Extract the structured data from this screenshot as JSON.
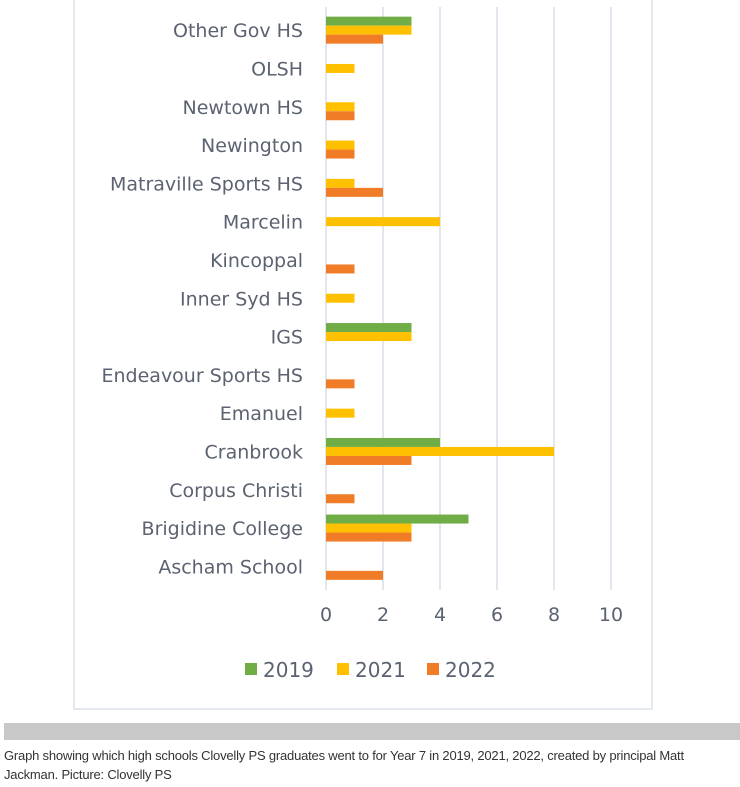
{
  "chart_data": {
    "type": "bar",
    "orientation": "horizontal",
    "title": "",
    "xlabel": "",
    "ylabel": "",
    "categories": [
      "Other Gov HS",
      "OLSH",
      "Newtown HS",
      "Newington",
      "Matraville Sports HS",
      "Marcelin",
      "Kincoppal",
      "Inner Syd HS",
      "IGS",
      "Endeavour Sports HS",
      "Emanuel",
      "Cranbrook",
      "Corpus Christi",
      "Brigidine College",
      "Ascham School"
    ],
    "series": [
      {
        "name": "2019",
        "color": "#70ad47",
        "values": [
          3,
          0,
          0,
          0,
          0,
          0,
          0,
          0,
          3,
          0,
          0,
          4,
          0,
          5,
          0
        ]
      },
      {
        "name": "2021",
        "color": "#ffc000",
        "values": [
          3,
          1,
          1,
          1,
          1,
          4,
          0,
          1,
          3,
          0,
          1,
          8,
          0,
          3,
          0
        ]
      },
      {
        "name": "2022",
        "color": "#f07c28",
        "values": [
          2,
          0,
          1,
          1,
          2,
          0,
          1,
          0,
          0,
          1,
          0,
          3,
          1,
          3,
          2
        ]
      }
    ],
    "xlim": [
      0,
      10
    ],
    "xticks": [
      0,
      2,
      4,
      6,
      8,
      10
    ],
    "tick_labels": [
      "0",
      "2",
      "4",
      "6",
      "8",
      "10"
    ],
    "grid": true,
    "legend_position": "bottom"
  },
  "caption": "Graph showing which high schools Clovelly PS graduates went to for Year 7 in 2019, 2021, 2022, created by principal Matt Jackman. Picture: Clovelly PS"
}
